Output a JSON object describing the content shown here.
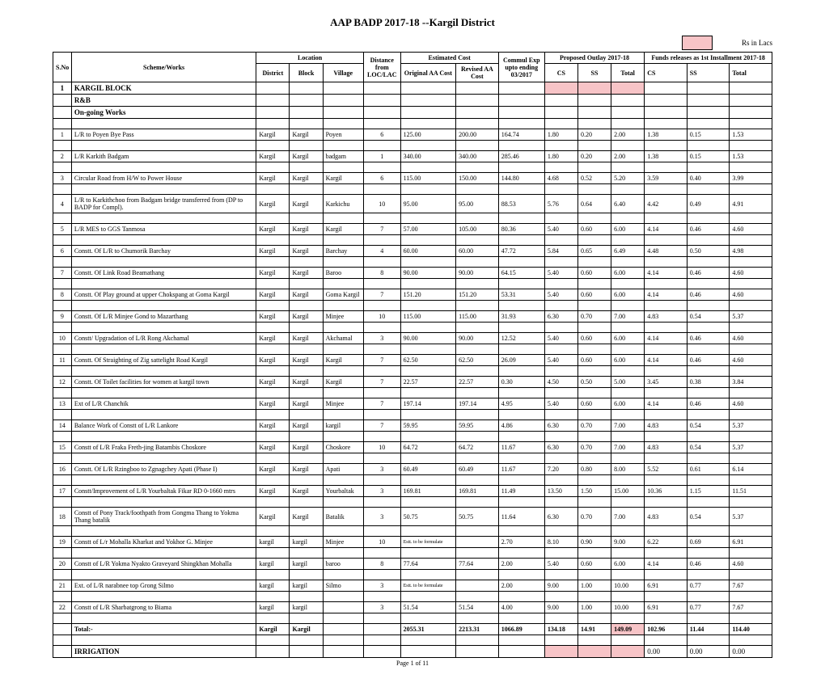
{
  "title": "AAP BADP 2017-18 --Kargil District",
  "units": "Rs in Lacs",
  "footer": "Page 1 of 11",
  "group_headers": {
    "location": "Location",
    "estimated_cost": "Estimated Cost",
    "proposed_outlay": "Proposed Outlay  2017-18",
    "funds_release": "Funds releases as 1st Installment 2017-18"
  },
  "headers": {
    "sno": "S.No",
    "works": "Scheme/Works",
    "district": "District",
    "block": "Block",
    "village": "Village",
    "distance": "Distance from LOC/LAC",
    "orig_aa": "Original AA Cost",
    "rev_aa": "Revised AA Cost",
    "commul": "Commul Exp upto ending 03/2017",
    "cs": "CS",
    "ss": "SS",
    "total": "Total",
    "fcs": "CS",
    "fss": "SS",
    "ftotal": "Total"
  },
  "section": {
    "no": "1",
    "name": "KARGIL BLOCK",
    "sub1": "R&B",
    "sub2": "On-going Works",
    "irrigation": "IRRIGATION"
  },
  "total_label": "Total:-",
  "totals": {
    "district": "Kargil",
    "block": "Kargil",
    "orig": "2055.31",
    "rev": "2213.31",
    "cum": "1066.89",
    "cs": "134.18",
    "ss": "14.91",
    "tot": "149.09",
    "fcs": "102.96",
    "fss": "11.44",
    "ftot": "114.40"
  },
  "irr": {
    "fcs": "0.00",
    "fss": "0.00",
    "ftot": "0.00"
  },
  "est_text": "Estt. to be formulate",
  "rows": [
    {
      "n": "1",
      "w": "L/R to Poyen Bye Pass",
      "d": "Kargil",
      "b": "Kargil",
      "v": "Poyen",
      "km": "6",
      "aa": "125.00",
      "r": "200.00",
      "c": "164.74",
      "cs": "1.80",
      "ss": "0.20",
      "t": "2.00",
      "fcs": "1.38",
      "fss": "0.15",
      "ft": "1.53"
    },
    {
      "n": "2",
      "w": "L/R Karkith Badgam",
      "d": "Kargil",
      "b": "Kargil",
      "v": "badgam",
      "km": "1",
      "aa": "340.00",
      "r": "340.00",
      "c": "285.46",
      "cs": "1.80",
      "ss": "0.20",
      "t": "2.00",
      "fcs": "1.38",
      "fss": "0.15",
      "ft": "1.53"
    },
    {
      "n": "3",
      "w": "Circular Road from H/W to Power House",
      "d": "Kargil",
      "b": "Kargil",
      "v": "Kargil",
      "km": "6",
      "aa": "115.00",
      "r": "150.00",
      "c": "144.80",
      "cs": "4.68",
      "ss": "0.52",
      "t": "5.20",
      "fcs": "3.59",
      "fss": "0.40",
      "ft": "3.99"
    },
    {
      "n": "4",
      "w": "L/R to Karkithchoo from Badgam bridge transferred from (DP to BADP for Compl).",
      "d": "Kargil",
      "b": "Kargil",
      "v": "Karkichu",
      "km": "10",
      "aa": "95.00",
      "r": "95.00",
      "c": "88.53",
      "cs": "5.76",
      "ss": "0.64",
      "t": "6.40",
      "fcs": "4.42",
      "fss": "0.49",
      "ft": "4.91"
    },
    {
      "n": "5",
      "w": "L/R MES to GGS Tanmosa",
      "d": "Kargil",
      "b": "Kargil",
      "v": "Kargil",
      "km": "7",
      "aa": "57.00",
      "r": "105.00",
      "c": "80.36",
      "cs": "5.40",
      "ss": "0.60",
      "t": "6.00",
      "fcs": "4.14",
      "fss": "0.46",
      "ft": "4.60"
    },
    {
      "n": "6",
      "w": "Constt. Of L/R to Chumorik Barchay",
      "d": "Kargil",
      "b": "Kargil",
      "v": "Barchay",
      "km": "4",
      "aa": "60.00",
      "r": "60.00",
      "c": "47.72",
      "cs": "5.84",
      "ss": "0.65",
      "t": "6.49",
      "fcs": "4.48",
      "fss": "0.50",
      "ft": "4.98"
    },
    {
      "n": "7",
      "w": "Constt. Of Link Road  Beamathang",
      "d": "Kargil",
      "b": "Kargil",
      "v": "Baroo",
      "km": "8",
      "aa": "90.00",
      "r": "90.00",
      "c": "64.15",
      "cs": "5.40",
      "ss": "0.60",
      "t": "6.00",
      "fcs": "4.14",
      "fss": "0.46",
      "ft": "4.60"
    },
    {
      "n": "8",
      "w": "Constt. Of Play ground at upper Chokspang at Goma Kargil",
      "d": "Kargil",
      "b": "Kargil",
      "v": "Goma Kargil",
      "km": "7",
      "aa": "151.20",
      "r": "151.20",
      "c": "53.31",
      "cs": "5.40",
      "ss": "0.60",
      "t": "6.00",
      "fcs": "4.14",
      "fss": "0.46",
      "ft": "4.60"
    },
    {
      "n": "9",
      "w": "Constt. Of L/R Minjee Gond to Mazarthang",
      "d": "Kargil",
      "b": "Kargil",
      "v": "Minjee",
      "km": "10",
      "aa": "115.00",
      "r": "115.00",
      "c": "31.93",
      "cs": "6.30",
      "ss": "0.70",
      "t": "7.00",
      "fcs": "4.83",
      "fss": "0.54",
      "ft": "5.37"
    },
    {
      "n": "10",
      "w": "Constt/ Upgradation of L/R Rong Akchamal",
      "d": "Kargil",
      "b": "Kargil",
      "v": "Akchamal",
      "km": "3",
      "aa": "90.00",
      "r": "90.00",
      "c": "12.52",
      "cs": "5.40",
      "ss": "0.60",
      "t": "6.00",
      "fcs": "4.14",
      "fss": "0.46",
      "ft": "4.60"
    },
    {
      "n": "11",
      "w": "Constt. Of Straighting  of Zig sattelight Road Kargil",
      "d": "Kargil",
      "b": "Kargil",
      "v": "Kargil",
      "km": "7",
      "aa": "62.50",
      "r": "62.50",
      "c": "26.09",
      "cs": "5.40",
      "ss": "0.60",
      "t": "6.00",
      "fcs": "4.14",
      "fss": "0.46",
      "ft": "4.60"
    },
    {
      "n": "12",
      "w": "Constt. Of Toilet facilities for women at kargil town",
      "d": "Kargil",
      "b": "Kargil",
      "v": "Kargil",
      "km": "7",
      "aa": "22.57",
      "r": "22.57",
      "c": "0.30",
      "cs": "4.50",
      "ss": "0.50",
      "t": "5.00",
      "fcs": "3.45",
      "fss": "0.38",
      "ft": "3.84"
    },
    {
      "n": "13",
      "w": "Ext of L/R Chanchik",
      "d": "Kargil",
      "b": "Kargil",
      "v": "Minjee",
      "km": "7",
      "aa": "197.14",
      "r": "197.14",
      "c": "4.95",
      "cs": "5.40",
      "ss": "0.60",
      "t": "6.00",
      "fcs": "4.14",
      "fss": "0.46",
      "ft": "4.60"
    },
    {
      "n": "14",
      "w": "Balance Work of Constt of L/R Lankore",
      "d": "Kargil",
      "b": "Kargil",
      "v": "kargil",
      "km": "7",
      "aa": "59.95",
      "r": "59.95",
      "c": "4.86",
      "cs": "6.30",
      "ss": "0.70",
      "t": "7.00",
      "fcs": "4.83",
      "fss": "0.54",
      "ft": "5.37"
    },
    {
      "n": "15",
      "w": "Constt of L/R Fraka Freth-jing Batambis Choskore",
      "d": "Kargil",
      "b": "Kargil",
      "v": "Choskore",
      "km": "10",
      "aa": "64.72",
      "r": "64.72",
      "c": "11.67",
      "cs": "6.30",
      "ss": "0.70",
      "t": "7.00",
      "fcs": "4.83",
      "fss": "0.54",
      "ft": "5.37"
    },
    {
      "n": "16",
      "w": "Constt. Of  L/R Rzingboo to Zgnagchey Apati (Phase I)",
      "d": "Kargil",
      "b": "Kargil",
      "v": "Apati",
      "km": "3",
      "aa": "60.49",
      "r": "60.49",
      "c": "11.67",
      "cs": "7.20",
      "ss": "0.80",
      "t": "8.00",
      "fcs": "5.52",
      "fss": "0.61",
      "ft": "6.14"
    },
    {
      "n": "17",
      "w": "Constt/Improvement of L/R Yourbaltak Fikar RD 0-1660 mtrs",
      "d": "Kargil",
      "b": "Kargil",
      "v": "Yourbaltak",
      "km": "3",
      "aa": "169.81",
      "r": "169.81",
      "c": "11.49",
      "cs": "13.50",
      "ss": "1.50",
      "t": "15.00",
      "fcs": "10.36",
      "fss": "1.15",
      "ft": "11.51"
    },
    {
      "n": "18",
      "w": "Constt of Pony Track/foothpath from Gongma Thang to Yokma Thang batalik",
      "d": "Kargil",
      "b": "Kargil",
      "v": "Batalik",
      "km": "3",
      "aa": "50.75",
      "r": "50.75",
      "c": "11.64",
      "cs": "6.30",
      "ss": "0.70",
      "t": "7.00",
      "fcs": "4.83",
      "fss": "0.54",
      "ft": "5.37"
    },
    {
      "n": "19",
      "w": "Constt of L/r Mohalla Kharkat and Yokhor G. Minjee",
      "d": "kargil",
      "b": "kargil",
      "v": "Minjee",
      "km": "10",
      "aa": "__EST__",
      "r": "",
      "c": "2.70",
      "cs": "8.10",
      "ss": "0.90",
      "t": "9.00",
      "fcs": "6.22",
      "fss": "0.69",
      "ft": "6.91"
    },
    {
      "n": "20",
      "w": "Constt of L/R Yokma Nyakto Graveyard Shingkhan Mohalla",
      "d": "kargil",
      "b": "kargil",
      "v": "baroo",
      "km": "8",
      "aa": "77.64",
      "r": "77.64",
      "c": "2.00",
      "cs": "5.40",
      "ss": "0.60",
      "t": "6.00",
      "fcs": "4.14",
      "fss": "0.46",
      "ft": "4.60"
    },
    {
      "n": "21",
      "w": "Ext. of L/R narabnee top Grong Silmo",
      "d": "kargil",
      "b": "kargil",
      "v": "Silmo",
      "km": "3",
      "aa": "__EST__",
      "r": "",
      "c": "2.00",
      "cs": "9.00",
      "ss": "1.00",
      "t": "10.00",
      "fcs": "6.91",
      "fss": "0.77",
      "ft": "7.67"
    },
    {
      "n": "22",
      "w": "Constt of L/R Sharbatgrong to Biama",
      "d": "kargil",
      "b": "kargil",
      "v": "",
      "km": "3",
      "aa": "51.54",
      "r": "51.54",
      "c": "4.00",
      "cs": "9.00",
      "ss": "1.00",
      "t": "10.00",
      "fcs": "6.91",
      "fss": "0.77",
      "ft": "7.67"
    }
  ]
}
